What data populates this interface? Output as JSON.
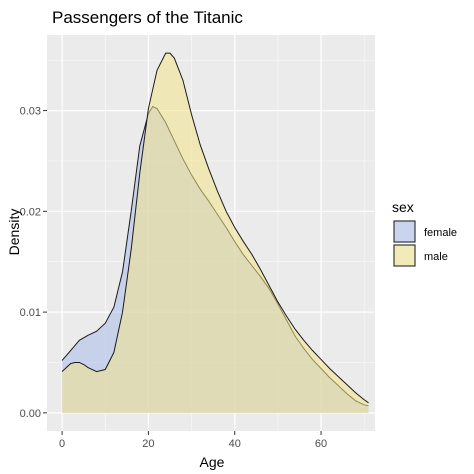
{
  "chart_data": {
    "type": "area",
    "title": "Passengers of the Titanic",
    "xlabel": "Age",
    "ylabel": "Density",
    "xlim": [
      -3.5,
      72.5
    ],
    "ylim": [
      -0.0018,
      0.0375
    ],
    "x_ticks": [
      0,
      20,
      40,
      60
    ],
    "x_tick_labels": [
      "0",
      "20",
      "40",
      "60"
    ],
    "y_ticks": [
      0,
      0.01,
      0.02,
      0.03
    ],
    "y_tick_labels": [
      "0.00",
      "0.01",
      "0.02",
      "0.03"
    ],
    "x_minor": [
      10,
      30,
      50,
      70
    ],
    "y_minor": [
      0.005,
      0.015,
      0.025,
      0.035
    ],
    "grid": true,
    "legend": {
      "title": "sex",
      "position": "right"
    },
    "series": [
      {
        "name": "female",
        "fill": "#aabbe9",
        "points": [
          [
            0,
            0.0052
          ],
          [
            2,
            0.0062
          ],
          [
            4,
            0.0072
          ],
          [
            6,
            0.0077
          ],
          [
            8,
            0.0081
          ],
          [
            10,
            0.0089
          ],
          [
            12,
            0.0105
          ],
          [
            14,
            0.014
          ],
          [
            16,
            0.02
          ],
          [
            18,
            0.0265
          ],
          [
            20,
            0.0297
          ],
          [
            21,
            0.0304
          ],
          [
            22,
            0.0302
          ],
          [
            24,
            0.0288
          ],
          [
            26,
            0.027
          ],
          [
            28,
            0.0252
          ],
          [
            30,
            0.0236
          ],
          [
            32,
            0.0222
          ],
          [
            34,
            0.021
          ],
          [
            36,
            0.0197
          ],
          [
            38,
            0.0184
          ],
          [
            40,
            0.017
          ],
          [
            42,
            0.0157
          ],
          [
            44,
            0.0146
          ],
          [
            46,
            0.0135
          ],
          [
            48,
            0.0123
          ],
          [
            50,
            0.0108
          ],
          [
            52,
            0.0092
          ],
          [
            54,
            0.0076
          ],
          [
            56,
            0.0064
          ],
          [
            58,
            0.0053
          ],
          [
            60,
            0.0044
          ],
          [
            62,
            0.0035
          ],
          [
            64,
            0.0027
          ],
          [
            66,
            0.0019
          ],
          [
            68,
            0.0012
          ],
          [
            70,
            0.0008
          ],
          [
            71,
            0.0007
          ]
        ]
      },
      {
        "name": "male",
        "fill": "#f2e38a",
        "points": [
          [
            0,
            0.0041
          ],
          [
            1,
            0.0045
          ],
          [
            2,
            0.0049
          ],
          [
            3,
            0.005
          ],
          [
            4,
            0.005
          ],
          [
            5,
            0.0048
          ],
          [
            6,
            0.0045
          ],
          [
            8,
            0.0041
          ],
          [
            10,
            0.0043
          ],
          [
            12,
            0.006
          ],
          [
            14,
            0.01
          ],
          [
            16,
            0.0162
          ],
          [
            18,
            0.0238
          ],
          [
            20,
            0.0302
          ],
          [
            22,
            0.034
          ],
          [
            24,
            0.0357
          ],
          [
            25,
            0.0357
          ],
          [
            26,
            0.0352
          ],
          [
            28,
            0.033
          ],
          [
            30,
            0.0296
          ],
          [
            32,
            0.0266
          ],
          [
            34,
            0.0242
          ],
          [
            36,
            0.022
          ],
          [
            38,
            0.02
          ],
          [
            40,
            0.0184
          ],
          [
            42,
            0.017
          ],
          [
            44,
            0.0157
          ],
          [
            46,
            0.0142
          ],
          [
            48,
            0.0126
          ],
          [
            50,
            0.011
          ],
          [
            52,
            0.0096
          ],
          [
            54,
            0.0083
          ],
          [
            56,
            0.0072
          ],
          [
            58,
            0.0062
          ],
          [
            60,
            0.0053
          ],
          [
            62,
            0.0044
          ],
          [
            64,
            0.0036
          ],
          [
            66,
            0.0028
          ],
          [
            68,
            0.002
          ],
          [
            70,
            0.0013
          ],
          [
            71,
            0.001
          ]
        ]
      }
    ]
  }
}
